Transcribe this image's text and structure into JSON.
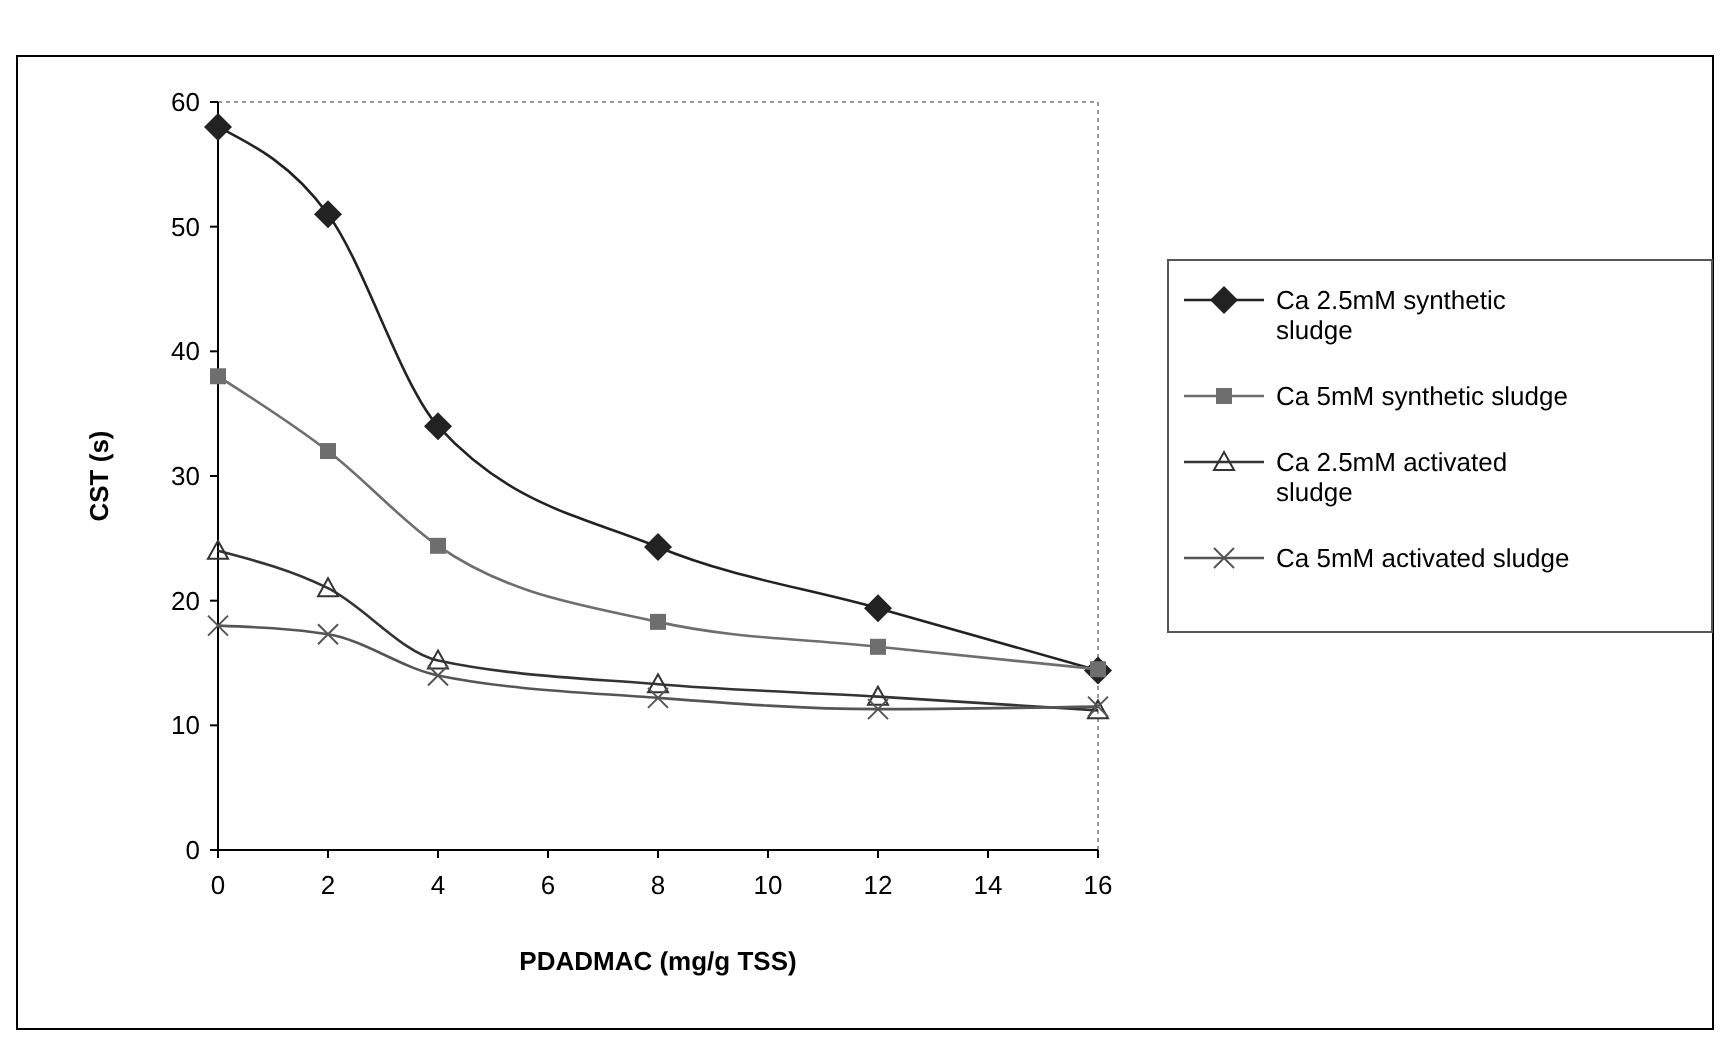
{
  "chart_data": {
    "type": "line",
    "xlabel": "PDADMAC (mg/g TSS)",
    "ylabel": "CST (s)",
    "x": [
      0,
      2,
      4,
      8,
      12,
      16
    ],
    "xlim": [
      0,
      16
    ],
    "xticks": [
      0,
      2,
      4,
      6,
      8,
      10,
      12,
      14,
      16
    ],
    "ylim": [
      0,
      60
    ],
    "yticks": [
      0,
      10,
      20,
      30,
      40,
      50,
      60
    ],
    "grid": false,
    "legend": "right",
    "line_style": "solid",
    "series": [
      {
        "name": "Ca 2.5mM synthetic sludge",
        "color": "#222222",
        "marker": "diamond",
        "values": [
          58,
          51,
          34,
          24.3,
          19.4,
          14.4
        ]
      },
      {
        "name": "Ca 5mM synthetic sludge",
        "color": "#6e6e6e",
        "marker": "square",
        "values": [
          38,
          32,
          24.4,
          18.3,
          16.3,
          14.5
        ]
      },
      {
        "name": "Ca 2.5mM activated sludge",
        "color": "#333333",
        "marker": "triangle",
        "values": [
          24,
          21,
          15.2,
          13.3,
          12.3,
          11.2
        ]
      },
      {
        "name": "Ca 5mM activated sludge",
        "color": "#555555",
        "marker": "cross",
        "values": [
          18,
          17.3,
          14,
          12.2,
          11.3,
          11.5
        ]
      }
    ]
  }
}
